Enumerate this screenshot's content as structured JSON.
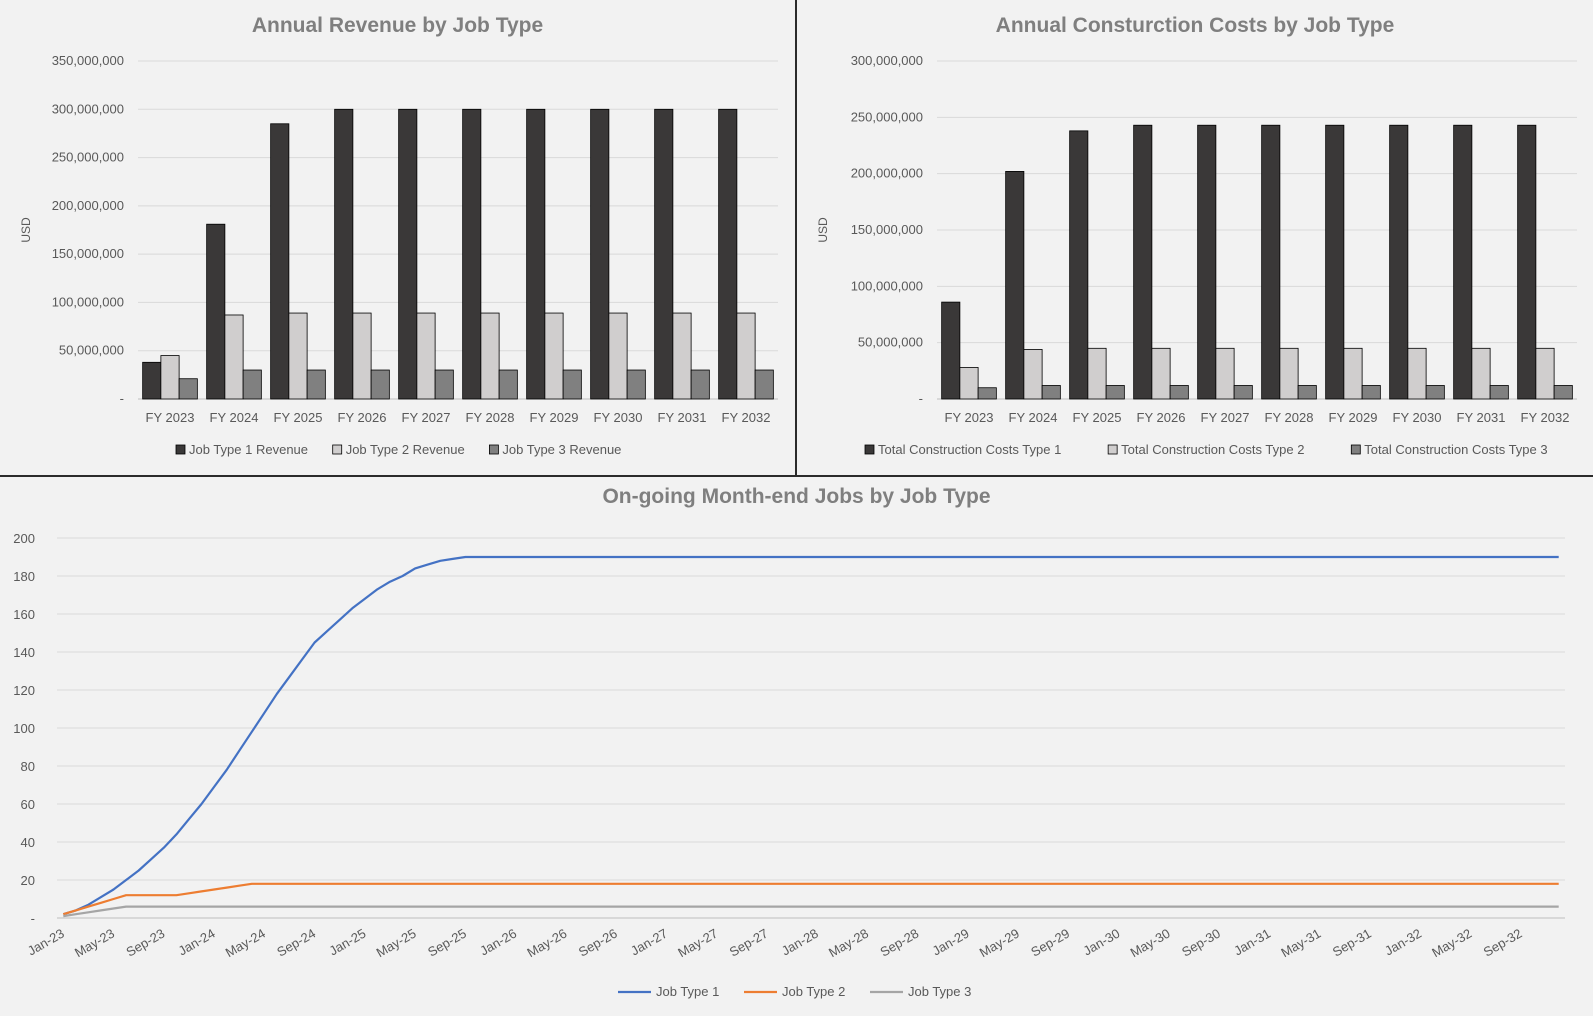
{
  "chart_data": [
    {
      "type": "bar",
      "title": "Annual Revenue by Job Type",
      "ylabel": "USD",
      "xlabel": "",
      "ylim": [
        0,
        350000000
      ],
      "yticks": [
        0,
        50000000,
        100000000,
        150000000,
        200000000,
        250000000,
        300000000,
        350000000
      ],
      "ytick_labels": [
        "-",
        "50,000,000",
        "100,000,000",
        "150,000,000",
        "200,000,000",
        "250,000,000",
        "300,000,000",
        "350,000,000"
      ],
      "categories": [
        "FY 2023",
        "FY 2024",
        "FY 2025",
        "FY 2026",
        "FY 2027",
        "FY 2028",
        "FY 2029",
        "FY 2030",
        "FY 2031",
        "FY 2032"
      ],
      "series": [
        {
          "name": "Job Type 1 Revenue",
          "color": "#3a3838",
          "values": [
            38000000,
            181000000,
            285000000,
            300000000,
            300000000,
            300000000,
            300000000,
            300000000,
            300000000,
            300000000
          ]
        },
        {
          "name": "Job Type 2 Revenue",
          "color": "#d0cece",
          "values": [
            45000000,
            87000000,
            89000000,
            89000000,
            89000000,
            89000000,
            89000000,
            89000000,
            89000000,
            89000000
          ]
        },
        {
          "name": "Job Type 3 Revenue",
          "color": "#808080",
          "values": [
            21000000,
            30000000,
            30000000,
            30000000,
            30000000,
            30000000,
            30000000,
            30000000,
            30000000,
            30000000
          ]
        }
      ],
      "grid": true,
      "legend": "bottom"
    },
    {
      "type": "bar",
      "title": "Annual Consturction Costs by Job Type",
      "ylabel": "USD",
      "xlabel": "",
      "ylim": [
        0,
        300000000
      ],
      "yticks": [
        0,
        50000000,
        100000000,
        150000000,
        200000000,
        250000000,
        300000000
      ],
      "ytick_labels": [
        "-",
        "50,000,000",
        "100,000,000",
        "150,000,000",
        "200,000,000",
        "250,000,000",
        "300,000,000"
      ],
      "categories": [
        "FY 2023",
        "FY 2024",
        "FY 2025",
        "FY 2026",
        "FY 2027",
        "FY 2028",
        "FY 2029",
        "FY 2030",
        "FY 2031",
        "FY 2032"
      ],
      "series": [
        {
          "name": "Total Construction Costs Type 1",
          "color": "#3a3838",
          "values": [
            86000000,
            202000000,
            238000000,
            243000000,
            243000000,
            243000000,
            243000000,
            243000000,
            243000000,
            243000000
          ]
        },
        {
          "name": "Total Construction Costs Type 2",
          "color": "#d0cece",
          "values": [
            28000000,
            44000000,
            45000000,
            45000000,
            45000000,
            45000000,
            45000000,
            45000000,
            45000000,
            45000000
          ]
        },
        {
          "name": "Total Construction Costs Type 3",
          "color": "#808080",
          "values": [
            10000000,
            12000000,
            12000000,
            12000000,
            12000000,
            12000000,
            12000000,
            12000000,
            12000000,
            12000000
          ]
        }
      ],
      "grid": true,
      "legend": "bottom"
    },
    {
      "type": "line",
      "title": "On-going Month-end Jobs by Job Type",
      "xlabel": "",
      "ylabel": "",
      "ylim": [
        0,
        200
      ],
      "yticks": [
        0,
        20,
        40,
        60,
        80,
        100,
        120,
        140,
        160,
        180,
        200
      ],
      "ytick_labels": [
        "-",
        "20",
        "40",
        "60",
        "80",
        "100",
        "120",
        "140",
        "160",
        "180",
        "200"
      ],
      "x_start": "Jan-23",
      "x_end": "Dec-32",
      "x_tick_labels": [
        "Jan-23",
        "May-23",
        "Sep-23",
        "Jan-24",
        "May-24",
        "Sep-24",
        "Jan-25",
        "May-25",
        "Sep-25",
        "Jan-26",
        "May-26",
        "Sep-26",
        "Jan-27",
        "May-27",
        "Sep-27",
        "Jan-28",
        "May-28",
        "Sep-28",
        "Jan-29",
        "May-29",
        "Sep-29",
        "Jan-30",
        "May-30",
        "Sep-30",
        "Jan-31",
        "May-31",
        "Sep-31",
        "Jan-32",
        "May-32",
        "Sep-32"
      ],
      "series": [
        {
          "name": "Job Type 1",
          "color": "#4472c4",
          "values": [
            2,
            4,
            7,
            11,
            15,
            20,
            25,
            31,
            37,
            44,
            52,
            60,
            69,
            78,
            88,
            98,
            108,
            118,
            127,
            136,
            145,
            151,
            157,
            163,
            168,
            173,
            177,
            180,
            184,
            186,
            188,
            189,
            190,
            190,
            190,
            190,
            190,
            190,
            190,
            190,
            190,
            190,
            190,
            190,
            190,
            190,
            190,
            190,
            190,
            190,
            190,
            190,
            190,
            190,
            190,
            190,
            190,
            190,
            190,
            190,
            190,
            190,
            190,
            190,
            190,
            190,
            190,
            190,
            190,
            190,
            190,
            190,
            190,
            190,
            190,
            190,
            190,
            190,
            190,
            190,
            190,
            190,
            190,
            190,
            190,
            190,
            190,
            190,
            190,
            190,
            190,
            190,
            190,
            190,
            190,
            190,
            190,
            190,
            190,
            190,
            190,
            190,
            190,
            190,
            190,
            190,
            190,
            190,
            190,
            190,
            190,
            190,
            190,
            190,
            190,
            190,
            190,
            190,
            190,
            190
          ]
        },
        {
          "name": "Job Type 2",
          "color": "#ed7d31",
          "values": [
            2,
            4,
            6,
            8,
            10,
            12,
            12,
            12,
            12,
            12,
            13,
            14,
            15,
            16,
            17,
            18,
            18,
            18,
            18,
            18,
            18,
            18,
            18,
            18,
            18,
            18,
            18,
            18,
            18,
            18,
            18,
            18,
            18,
            18,
            18,
            18,
            18,
            18,
            18,
            18,
            18,
            18,
            18,
            18,
            18,
            18,
            18,
            18,
            18,
            18,
            18,
            18,
            18,
            18,
            18,
            18,
            18,
            18,
            18,
            18,
            18,
            18,
            18,
            18,
            18,
            18,
            18,
            18,
            18,
            18,
            18,
            18,
            18,
            18,
            18,
            18,
            18,
            18,
            18,
            18,
            18,
            18,
            18,
            18,
            18,
            18,
            18,
            18,
            18,
            18,
            18,
            18,
            18,
            18,
            18,
            18,
            18,
            18,
            18,
            18,
            18,
            18,
            18,
            18,
            18,
            18,
            18,
            18,
            18,
            18,
            18,
            18,
            18,
            18,
            18,
            18,
            18,
            18,
            18,
            18
          ]
        },
        {
          "name": "Job Type 3",
          "color": "#a5a5a5",
          "values": [
            1,
            2,
            3,
            4,
            5,
            6,
            6,
            6,
            6,
            6,
            6,
            6,
            6,
            6,
            6,
            6,
            6,
            6,
            6,
            6,
            6,
            6,
            6,
            6,
            6,
            6,
            6,
            6,
            6,
            6,
            6,
            6,
            6,
            6,
            6,
            6,
            6,
            6,
            6,
            6,
            6,
            6,
            6,
            6,
            6,
            6,
            6,
            6,
            6,
            6,
            6,
            6,
            6,
            6,
            6,
            6,
            6,
            6,
            6,
            6,
            6,
            6,
            6,
            6,
            6,
            6,
            6,
            6,
            6,
            6,
            6,
            6,
            6,
            6,
            6,
            6,
            6,
            6,
            6,
            6,
            6,
            6,
            6,
            6,
            6,
            6,
            6,
            6,
            6,
            6,
            6,
            6,
            6,
            6,
            6,
            6,
            6,
            6,
            6,
            6,
            6,
            6,
            6,
            6,
            6,
            6,
            6,
            6,
            6,
            6,
            6,
            6,
            6,
            6,
            6,
            6,
            6,
            6,
            6,
            6
          ]
        }
      ],
      "grid": true,
      "legend": "bottom"
    }
  ]
}
